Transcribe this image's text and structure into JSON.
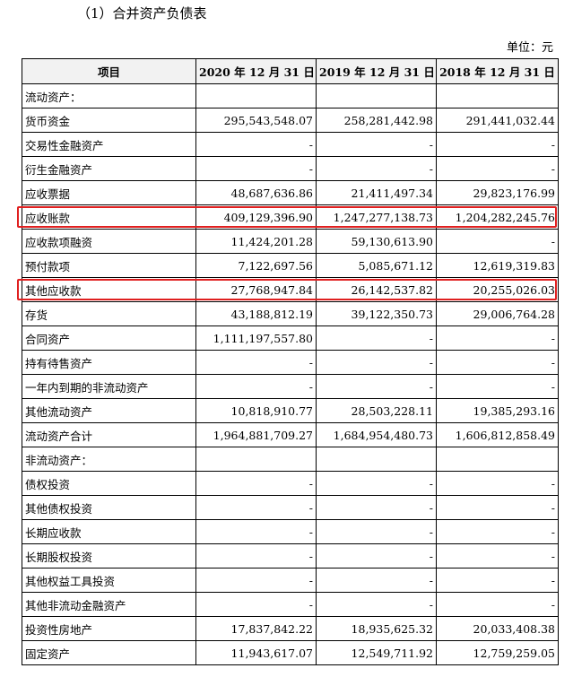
{
  "header": {
    "title": "（1）合并资产负债表",
    "unit": "单位：元"
  },
  "table": {
    "columns": [
      "项目",
      "2020 年 12 月 31 日",
      "2019 年 12 月 31 日",
      "2018 年 12 月 31 日"
    ],
    "rows": [
      [
        "流动资产："
      ],
      [
        "货币资金",
        "295,543,548.07",
        "258,281,442.98",
        "291,441,032.44"
      ],
      [
        "交易性金融资产",
        "-",
        "-",
        "-"
      ],
      [
        "衍生金融资产",
        "-",
        "-",
        "-"
      ],
      [
        "应收票据",
        "48,687,636.86",
        "21,411,497.34",
        "29,823,176.99"
      ],
      [
        "应收账款",
        "409,129,396.90",
        "1,247,277,138.73",
        "1,204,282,245.76"
      ],
      [
        "应收款项融资",
        "11,424,201.28",
        "59,130,613.90",
        "-"
      ],
      [
        "预付款项",
        "7,122,697.56",
        "5,085,671.12",
        "12,619,319.83"
      ],
      [
        "其他应收款",
        "27,768,947.84",
        "26,142,537.82",
        "20,255,026.03"
      ],
      [
        "存货",
        "43,188,812.19",
        "39,122,350.73",
        "29,006,764.28"
      ],
      [
        "合同资产",
        "1,111,197,557.80",
        "-",
        "-"
      ],
      [
        "持有待售资产",
        "-",
        "-",
        "-"
      ],
      [
        "一年内到期的非流动资产",
        "-",
        "-",
        "-"
      ],
      [
        "其他流动资产",
        "10,818,910.77",
        "28,503,228.11",
        "19,385,293.16"
      ],
      [
        "流动资产合计",
        "1,964,881,709.27",
        "1,684,954,480.73",
        "1,606,812,858.49"
      ],
      [
        "非流动资产："
      ],
      [
        "债权投资",
        "-",
        "-",
        "-"
      ],
      [
        "其他债权投资",
        "-",
        "-",
        "-"
      ],
      [
        "长期应收款",
        "-",
        "-",
        "-"
      ],
      [
        "长期股权投资",
        "-",
        "-",
        "-"
      ],
      [
        "其他权益工具投资",
        "-",
        "-",
        "-"
      ],
      [
        "其他非流动金融资产",
        "-",
        "-",
        "-"
      ],
      [
        "投资性房地产",
        "17,837,842.22",
        "18,935,625.32",
        "20,033,408.38"
      ],
      [
        "固定资产",
        "11,943,617.07",
        "12,549,711.92",
        "12,759,259.05"
      ]
    ]
  }
}
